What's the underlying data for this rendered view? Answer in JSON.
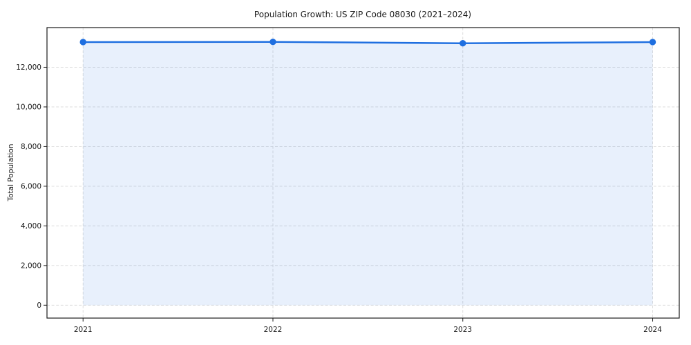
{
  "chart_data": {
    "type": "line",
    "title": "Population Growth: US ZIP Code 08030 (2021–2024)",
    "xlabel": "",
    "ylabel": "Total Population",
    "series_name": "Total Population",
    "x": [
      2021,
      2022,
      2023,
      2024
    ],
    "x_tick_labels": [
      "2021",
      "2022",
      "2023",
      "2024"
    ],
    "values": [
      13270,
      13280,
      13210,
      13270
    ],
    "yticks": [
      0,
      2000,
      4000,
      6000,
      8000,
      10000,
      12000
    ],
    "ytick_labels": [
      "0",
      "2,000",
      "4,000",
      "6,000",
      "8,000",
      "10,000",
      "12,000"
    ],
    "xlim": [
      2020.81,
      2024.14
    ],
    "ylim": [
      -650,
      14000
    ],
    "grid": true,
    "grid_style": "dashed",
    "legend": false,
    "area_fill_to_zero": true,
    "marker": "circle",
    "colors": {
      "line": "#1f6fe0",
      "fill": "#1f6fe0",
      "fill_opacity": 0.1,
      "grid": "#d9d9d9",
      "spine": "#1a1a1a",
      "text": "#1a1a1a",
      "background": "#ffffff"
    }
  }
}
